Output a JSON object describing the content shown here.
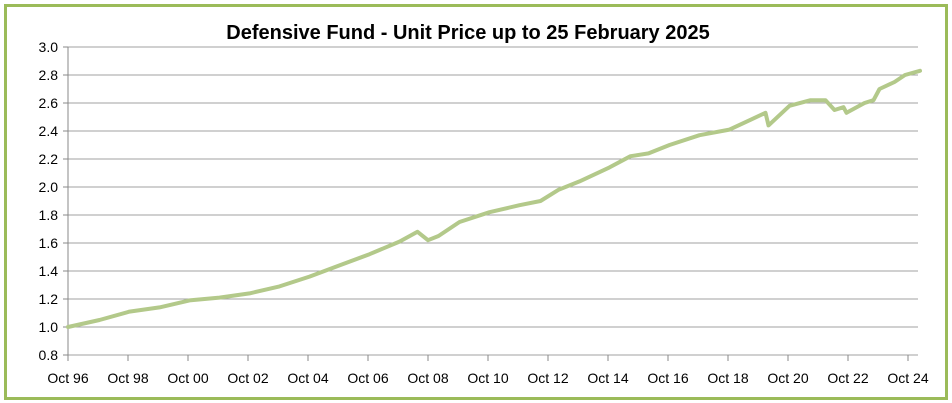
{
  "chart_data": {
    "type": "line",
    "title": "Defensive Fund - Unit Price up to 25 February 2025",
    "xlabel": "",
    "ylabel": "",
    "ylim": [
      0.8,
      3.0
    ],
    "xlim": [
      1996.75,
      2025.15
    ],
    "grid": true,
    "legend": "none",
    "y_ticks": [
      "0.8",
      "1.0",
      "1.2",
      "1.4",
      "1.6",
      "1.8",
      "2.0",
      "2.2",
      "2.4",
      "2.6",
      "2.8",
      "3.0"
    ],
    "x_ticks": [
      "Oct 96",
      "Oct 98",
      "Oct 00",
      "Oct 02",
      "Oct 04",
      "Oct 06",
      "Oct 08",
      "Oct 10",
      "Oct 12",
      "Oct 14",
      "Oct 16",
      "Oct 18",
      "Oct 20",
      "Oct 22",
      "Oct 24"
    ],
    "series": [
      {
        "name": "Unit Price",
        "color": "#b3c98a",
        "x": [
          1996.75,
          1997.8,
          1998.8,
          1999.8,
          2000.8,
          2001.8,
          2002.8,
          2003.8,
          2004.8,
          2005.8,
          2006.8,
          2007.8,
          2008.4,
          2008.75,
          2009.1,
          2009.8,
          2010.8,
          2011.8,
          2012.5,
          2013.1,
          2013.8,
          2014.8,
          2015.5,
          2016.1,
          2016.8,
          2017.8,
          2018.8,
          2019.5,
          2020.0,
          2020.1,
          2020.8,
          2021.5,
          2022.0,
          2022.3,
          2022.6,
          2022.7,
          2023.3,
          2023.6,
          2023.8,
          2024.3,
          2024.65,
          2025.15
        ],
        "values": [
          1.0,
          1.05,
          1.11,
          1.14,
          1.19,
          1.21,
          1.24,
          1.29,
          1.36,
          1.44,
          1.52,
          1.61,
          1.68,
          1.62,
          1.65,
          1.75,
          1.82,
          1.87,
          1.9,
          1.98,
          2.04,
          2.14,
          2.22,
          2.24,
          2.3,
          2.37,
          2.41,
          2.48,
          2.53,
          2.44,
          2.58,
          2.62,
          2.62,
          2.55,
          2.57,
          2.53,
          2.6,
          2.62,
          2.7,
          2.75,
          2.8,
          2.83
        ]
      }
    ]
  }
}
